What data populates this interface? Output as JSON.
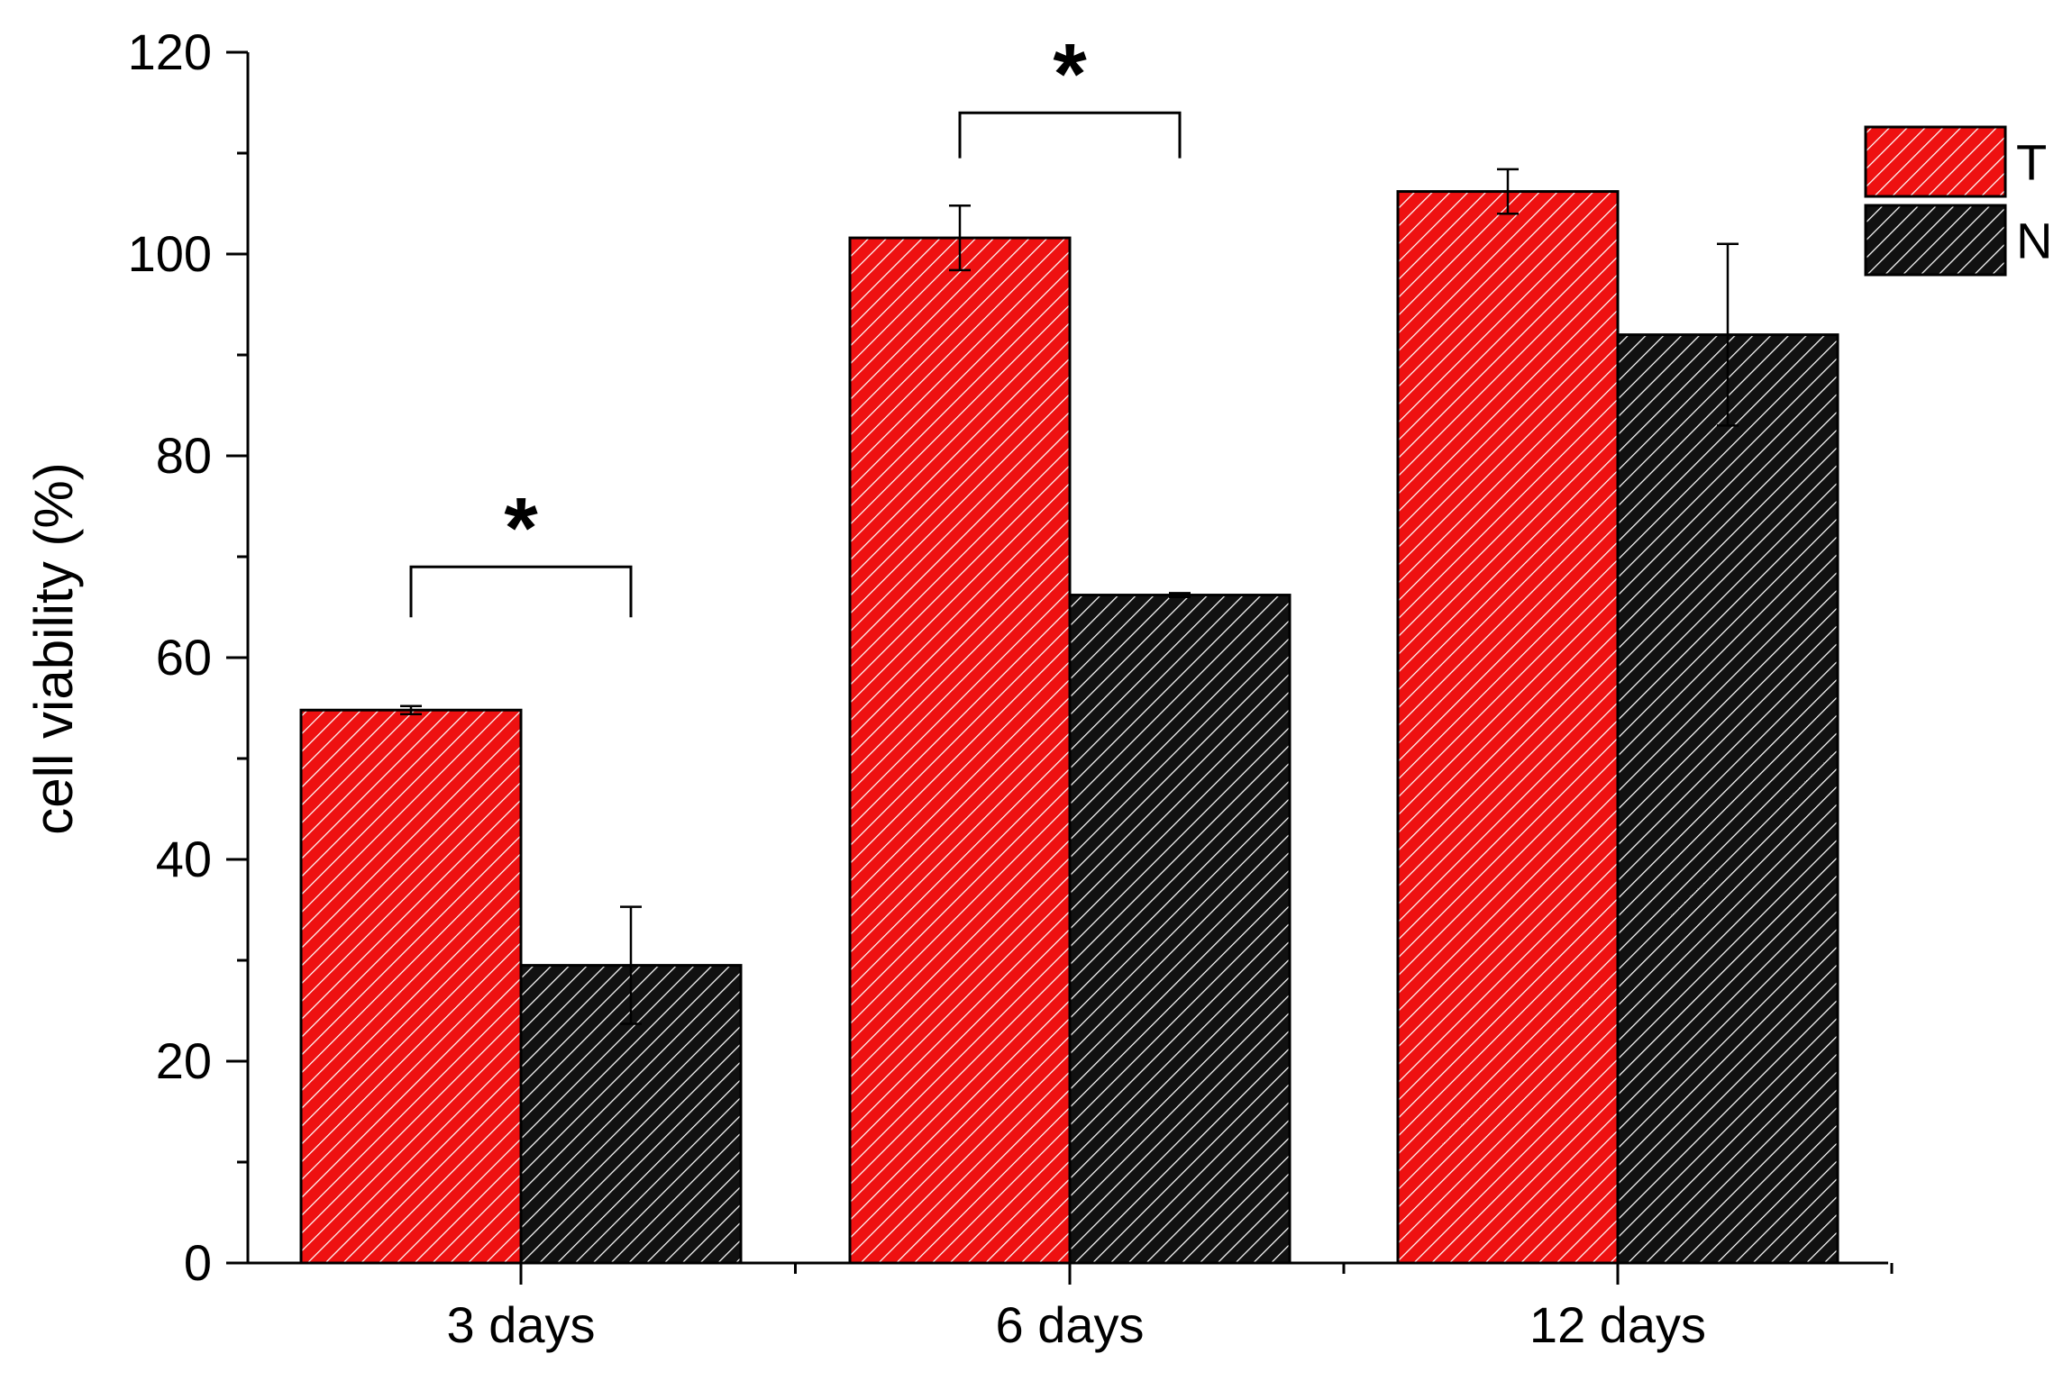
{
  "chart_data": {
    "type": "bar",
    "title": "",
    "xlabel": "",
    "ylabel": "cell viability (%)",
    "categories": [
      "3 days",
      "6 days",
      "12 days"
    ],
    "ylim": [
      0,
      120
    ],
    "yticks": [
      0,
      20,
      40,
      60,
      80,
      100,
      120
    ],
    "yticks_labels": [
      "0",
      "20",
      "40",
      "60",
      "80",
      "100",
      "120"
    ],
    "series": [
      {
        "name": "T",
        "values": [
          54.8,
          101.6,
          106.2
        ],
        "errors": [
          0.4,
          3.2,
          2.2
        ],
        "color": "#ee1111",
        "hatch": "diagonal-white"
      },
      {
        "name": "N",
        "values": [
          29.5,
          66.2,
          92.0
        ],
        "errors": [
          5.8,
          0.2,
          9.0
        ],
        "color": "#111111",
        "hatch": "diagonal-white"
      }
    ],
    "legend": {
      "position": "top-right",
      "entries": [
        "T",
        "N"
      ]
    },
    "annotations": [
      {
        "category_index": 0,
        "text": "*",
        "bracket_level": 69,
        "bracket_drop": 64
      },
      {
        "category_index": 1,
        "text": "*",
        "bracket_level": 114,
        "bracket_drop": 109.5
      }
    ],
    "grid": false
  }
}
